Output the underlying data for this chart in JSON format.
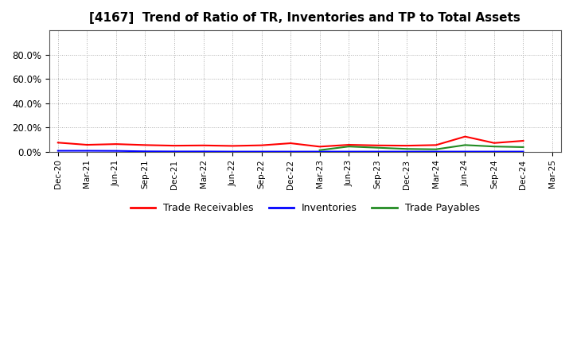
{
  "title": "[4167]  Trend of Ratio of TR, Inventories and TP to Total Assets",
  "x_labels": [
    "Dec-20",
    "Mar-21",
    "Jun-21",
    "Sep-21",
    "Dec-21",
    "Mar-22",
    "Jun-22",
    "Sep-22",
    "Dec-22",
    "Mar-23",
    "Jun-23",
    "Sep-23",
    "Dec-23",
    "Mar-24",
    "Jun-24",
    "Sep-24",
    "Dec-24",
    "Mar-25"
  ],
  "trade_receivables": [
    0.075,
    0.057,
    0.063,
    0.055,
    0.05,
    0.052,
    0.048,
    0.053,
    0.07,
    0.042,
    0.057,
    0.052,
    0.05,
    0.055,
    0.125,
    0.072,
    0.09,
    null
  ],
  "inventories": [
    0.008,
    0.008,
    0.007,
    0.003,
    0.002,
    0.002,
    0.001,
    0.001,
    0.001,
    0.001,
    0.001,
    0.001,
    0.001,
    0.001,
    0.001,
    0.001,
    0.001,
    null
  ],
  "trade_payables": [
    null,
    null,
    null,
    null,
    null,
    null,
    null,
    null,
    null,
    0.013,
    0.043,
    0.033,
    0.023,
    0.02,
    0.055,
    0.043,
    0.038,
    null
  ],
  "colors": {
    "trade_receivables": "#FF0000",
    "inventories": "#0000FF",
    "trade_payables": "#228B22"
  },
  "legend_labels": [
    "Trade Receivables",
    "Inventories",
    "Trade Payables"
  ],
  "background_color": "#FFFFFF",
  "grid_color": "#AAAAAA",
  "title_fontsize": 11,
  "ylim": [
    0,
    1.0
  ],
  "ytick_vals": [
    0.0,
    0.2,
    0.4,
    0.6,
    0.8
  ],
  "ytick_labels": [
    "0.0%",
    "20.0%",
    "40.0%",
    "60.0%",
    "80.0%"
  ]
}
